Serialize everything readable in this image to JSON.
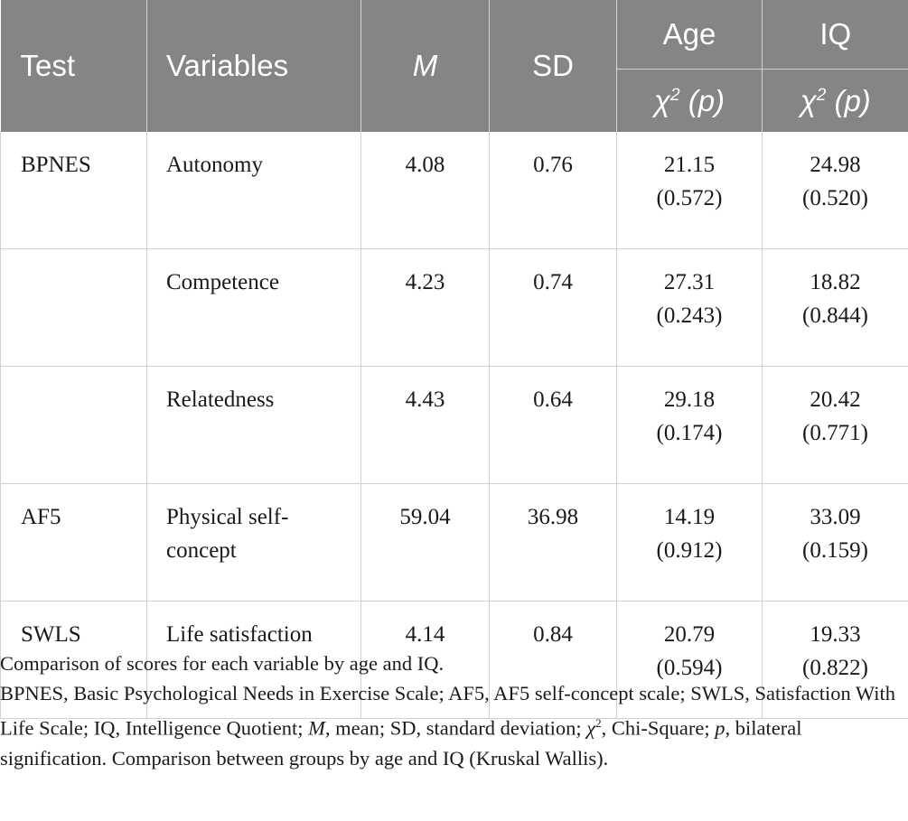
{
  "table": {
    "headers": {
      "test": "Test",
      "variables": "Variables",
      "m": "M",
      "sd": "SD",
      "age": "Age",
      "iq": "IQ",
      "chi": "χ",
      "chi_sup": "2",
      "p": "(p)"
    },
    "rows": [
      {
        "test": "BPNES",
        "variable": "Autonomy",
        "m": "4.08",
        "sd": "0.76",
        "age_chi": "21.15",
        "age_p": "(0.572)",
        "iq_chi": "24.98",
        "iq_p": "(0.520)"
      },
      {
        "test": "",
        "variable": "Competence",
        "m": "4.23",
        "sd": "0.74",
        "age_chi": "27.31",
        "age_p": "(0.243)",
        "iq_chi": "18.82",
        "iq_p": "(0.844)"
      },
      {
        "test": "",
        "variable": "Relatedness",
        "m": "4.43",
        "sd": "0.64",
        "age_chi": "29.18",
        "age_p": "(0.174)",
        "iq_chi": "20.42",
        "iq_p": "(0.771)"
      },
      {
        "test": "AF5",
        "variable_line1": "Physical self-",
        "variable_line2": "concept",
        "m": "59.04",
        "sd": "36.98",
        "age_chi": "14.19",
        "age_p": "(0.912)",
        "iq_chi": "33.09",
        "iq_p": "(0.159)"
      },
      {
        "test": "SWLS",
        "variable": "Life satisfaction",
        "m": "4.14",
        "sd": "0.84",
        "age_chi": "20.79",
        "age_p": "(0.594)",
        "iq_chi": "19.33",
        "iq_p": "(0.822)"
      }
    ]
  },
  "footnote": {
    "line1": "Comparison of scores for each variable by age and IQ.",
    "abbrev_a": "BPNES, Basic Psychological Needs in Exercise Scale; AF5, AF5 self-concept scale; SWLS, Satisfaction With Life Scale; IQ, Intelligence Quotient; ",
    "m": "M",
    "abbrev_b": ", mean; SD, standard deviation; ",
    "chi": "χ",
    "chi_sup": "2",
    "abbrev_c": ", Chi-Square; ",
    "p": "p",
    "abbrev_d": ", bilateral signification. Comparison between groups by age and IQ (Kruskal Wallis)."
  }
}
